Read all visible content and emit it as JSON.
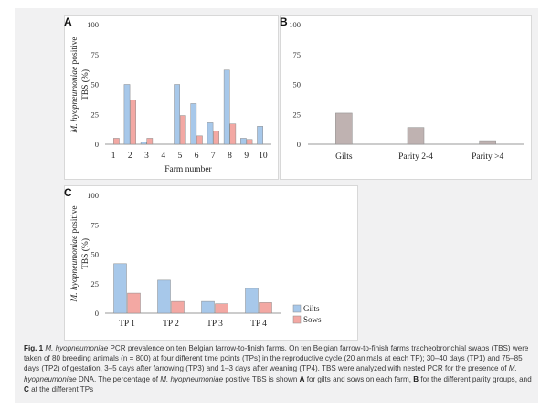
{
  "chart_data": [
    {
      "id": "A",
      "type": "bar",
      "title": "",
      "xlabel": "Farm number",
      "ylabel_italic": "M. hyopneumoniae",
      "ylabel_rest": " positive",
      "ylabel_line2": "TBS (%)",
      "ylim": [
        0,
        100
      ],
      "yticks": [
        0,
        25,
        50,
        75,
        100
      ],
      "categories": [
        "1",
        "2",
        "3",
        "4",
        "5",
        "6",
        "7",
        "8",
        "9",
        "10"
      ],
      "series": [
        {
          "name": "Gilts",
          "color": "#a7c8ea",
          "values": [
            0,
            50,
            2,
            0,
            50,
            34,
            18,
            62,
            5,
            15
          ]
        },
        {
          "name": "Sows",
          "color": "#f3a8a3",
          "values": [
            5,
            37,
            5,
            0,
            24,
            7,
            11,
            17,
            4,
            0
          ]
        }
      ],
      "legend": "none"
    },
    {
      "id": "B",
      "type": "bar",
      "title": "",
      "xlabel": "",
      "ylim": [
        0,
        100
      ],
      "yticks": [
        0,
        25,
        50,
        75,
        100
      ],
      "categories": [
        "Gilts",
        "Parity 2-4",
        "Parity >4"
      ],
      "series": [
        {
          "color": "#bfb2b1",
          "values": [
            26,
            14,
            3
          ]
        }
      ],
      "legend": "none"
    },
    {
      "id": "C",
      "type": "bar",
      "title": "",
      "xlabel": "",
      "ylabel_italic": "M. hyopneumoniae",
      "ylabel_rest": " positive",
      "ylabel_line2": "TBS (%)",
      "ylim": [
        0,
        100
      ],
      "yticks": [
        0,
        25,
        50,
        75,
        100
      ],
      "categories": [
        "TP 1",
        "TP 2",
        "TP 3",
        "TP 4"
      ],
      "series": [
        {
          "name": "Gilts",
          "color": "#a7c8ea",
          "values": [
            42,
            28,
            10,
            21
          ]
        },
        {
          "name": "Sows",
          "color": "#f3a8a3",
          "values": [
            17,
            10,
            8,
            9
          ]
        }
      ],
      "legend": "right"
    }
  ],
  "panel_labels": {
    "a": "A",
    "b": "B",
    "c": "C"
  },
  "caption": {
    "fig_label": "Fig. 1",
    "species": "M. hyopneumoniae",
    "part1": " PCR prevalence on ten Belgian farrow-to-finish farms. On ten Belgian farrow-to-finish farms tracheobronchial swabs (TBS) were taken of 80 breeding animals (n = 800) at four different time points (TPs) in the reproductive cycle (20 animals at each TP); 30–40 days (TP1) and 75–85 days (TP2) of gestation, 3–5 days after farrowing (TP3) and 1–3 days after weaning (TP4). TBS were analyzed with nested PCR for the presence of ",
    "species2": "M. hyopneumoniae",
    "part2": " DNA. The percentage of ",
    "species3": "M. hyopneumoniae",
    "part3": " positive TBS is shown ",
    "bold_a": "A",
    "part4": " for gilts and sows on each farm, ",
    "bold_b": "B",
    "part5": " for the different parity groups, and ",
    "bold_c": "C",
    "part6": " at the different TPs"
  }
}
